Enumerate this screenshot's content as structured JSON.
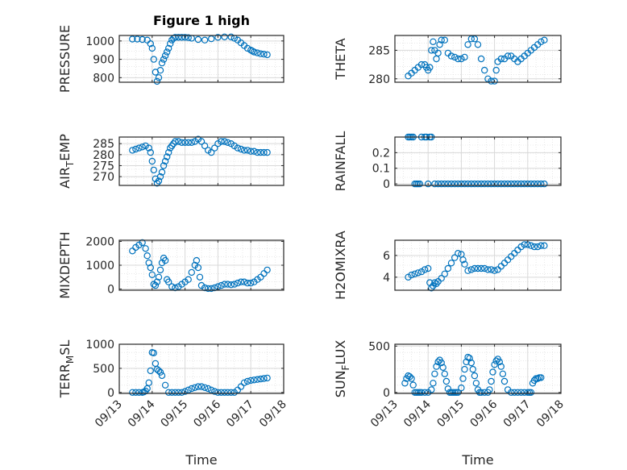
{
  "figure": {
    "title": "Figure 1 high",
    "marker_color": "#0072BD",
    "grid_color": "#d9d9d9",
    "axis_color": "#262626",
    "background": "#ffffff"
  },
  "chart_data": [
    {
      "id": "pressure",
      "type": "scatter",
      "marker": "circle-open",
      "title": "Figure 1 high",
      "ylabel": "PRESSURE",
      "xlabel": "",
      "ylim": [
        775,
        1030
      ],
      "yticks": [
        800,
        900,
        1000
      ],
      "grid": true,
      "x_date_ticks": [
        "09/13",
        "09/14",
        "09/15",
        "09/16",
        "09/17",
        "09/18"
      ],
      "x_tick_labels_shown": false,
      "x": [
        0.4,
        0.55,
        0.7,
        0.85,
        0.95,
        1.0,
        1.05,
        1.1,
        1.15,
        1.2,
        1.25,
        1.3,
        1.35,
        1.4,
        1.45,
        1.5,
        1.55,
        1.6,
        1.65,
        1.7,
        1.8,
        1.9,
        2.0,
        2.1,
        2.2,
        2.4,
        2.6,
        2.8,
        3.0,
        3.2,
        3.4,
        3.5,
        3.6,
        3.7,
        3.8,
        3.9,
        4.0,
        4.05,
        4.1,
        4.2,
        4.3,
        4.4,
        4.5
      ],
      "y": [
        1010,
        1010,
        1008,
        1005,
        985,
        960,
        900,
        830,
        780,
        800,
        840,
        880,
        900,
        920,
        940,
        960,
        985,
        1005,
        1015,
        1020,
        1020,
        1020,
        1020,
        1018,
        1015,
        1008,
        1005,
        1012,
        1020,
        1022,
        1022,
        1015,
        1005,
        990,
        975,
        960,
        950,
        945,
        940,
        935,
        930,
        928,
        925
      ]
    },
    {
      "id": "theta",
      "type": "scatter",
      "marker": "circle-open",
      "ylabel": "THETA",
      "xlabel": "",
      "ylim": [
        279.4,
        287.6
      ],
      "yticks": [
        280,
        285
      ],
      "grid": true,
      "x_date_ticks": [
        "09/13",
        "09/14",
        "09/15",
        "09/16",
        "09/17",
        "09/18"
      ],
      "x_tick_labels_shown": false,
      "x": [
        0.4,
        0.5,
        0.6,
        0.7,
        0.8,
        0.9,
        0.95,
        1.0,
        1.05,
        1.1,
        1.15,
        1.2,
        1.25,
        1.3,
        1.35,
        1.4,
        1.5,
        1.6,
        1.7,
        1.8,
        1.9,
        2.0,
        2.1,
        2.2,
        2.3,
        2.4,
        2.5,
        2.6,
        2.7,
        2.8,
        2.9,
        3.0,
        3.05,
        3.1,
        3.2,
        3.3,
        3.4,
        3.5,
        3.6,
        3.7,
        3.8,
        3.9,
        4.0,
        4.1,
        4.2,
        4.3,
        4.4,
        4.5
      ],
      "y": [
        280.5,
        281,
        281.5,
        282,
        282.5,
        282.5,
        282,
        281.5,
        282,
        285,
        286.5,
        285,
        283.5,
        284.5,
        286,
        286.8,
        286.8,
        284.5,
        284,
        283.8,
        283.5,
        283.5,
        283.8,
        286,
        287,
        287,
        286,
        283.5,
        281.5,
        280,
        279.6,
        279.6,
        281.5,
        283,
        283.5,
        283.5,
        284,
        284,
        283.5,
        283,
        283.5,
        284,
        284.5,
        285,
        285.5,
        286,
        286.5,
        286.8
      ]
    },
    {
      "id": "air_temp",
      "type": "scatter",
      "marker": "circle-open",
      "ylabel": "AIR_TEMP",
      "ylabel_rendered": [
        "AIR",
        "T",
        "EMP"
      ],
      "xlabel": "",
      "ylim": [
        266,
        288
      ],
      "yticks": [
        270,
        275,
        280,
        285
      ],
      "grid": true,
      "x_date_ticks": [
        "09/13",
        "09/14",
        "09/15",
        "09/16",
        "09/17",
        "09/18"
      ],
      "x_tick_labels_shown": false,
      "x": [
        0.4,
        0.5,
        0.6,
        0.7,
        0.8,
        0.9,
        0.95,
        1.0,
        1.05,
        1.1,
        1.15,
        1.2,
        1.25,
        1.3,
        1.35,
        1.4,
        1.45,
        1.5,
        1.55,
        1.6,
        1.65,
        1.7,
        1.8,
        1.9,
        2.0,
        2.1,
        2.2,
        2.3,
        2.4,
        2.5,
        2.6,
        2.7,
        2.8,
        2.9,
        3.0,
        3.1,
        3.2,
        3.3,
        3.4,
        3.5,
        3.6,
        3.7,
        3.8,
        3.9,
        4.0,
        4.1,
        4.2,
        4.3,
        4.4,
        4.5
      ],
      "y": [
        282,
        282.5,
        283,
        283.5,
        284,
        283,
        281,
        277,
        273,
        269,
        267,
        268,
        270,
        272,
        275,
        277,
        279,
        281,
        283,
        284,
        285,
        286,
        286,
        285.5,
        285.5,
        285.5,
        285.5,
        286,
        287,
        286,
        284,
        282,
        281,
        283,
        285,
        286,
        286,
        285.5,
        285,
        284,
        283,
        282.5,
        282,
        282,
        281.5,
        281.5,
        281,
        281,
        281,
        281
      ]
    },
    {
      "id": "rainfall",
      "type": "scatter",
      "marker": "circle-open",
      "ylabel": "RAINFALL",
      "xlabel": "",
      "ylim": [
        -0.01,
        0.3
      ],
      "yticks": [
        0,
        0.1,
        0.2
      ],
      "ytick_labels": [
        "0",
        "0.1",
        "0.2"
      ],
      "grid": true,
      "x_date_ticks": [
        "09/13",
        "09/14",
        "09/15",
        "09/16",
        "09/17",
        "09/18"
      ],
      "x_tick_labels_shown": false,
      "x": [
        0.4,
        0.45,
        0.5,
        0.55,
        0.6,
        0.65,
        0.7,
        0.75,
        0.8,
        0.9,
        0.95,
        1.0,
        1.05,
        1.1,
        1.2,
        1.3,
        1.4,
        1.5,
        1.6,
        1.7,
        1.8,
        1.9,
        2.0,
        2.1,
        2.2,
        2.3,
        2.4,
        2.5,
        2.6,
        2.7,
        2.8,
        2.9,
        3.0,
        3.1,
        3.2,
        3.3,
        3.4,
        3.5,
        3.6,
        3.7,
        3.8,
        3.9,
        4.0,
        4.1,
        4.2,
        4.3,
        4.4,
        4.5
      ],
      "y": [
        0.3,
        0.3,
        0.3,
        0.3,
        0,
        0,
        0,
        0,
        0.3,
        0.3,
        0.3,
        0,
        0.3,
        0.3,
        0,
        0,
        0,
        0,
        0,
        0,
        0,
        0,
        0,
        0,
        0,
        0,
        0,
        0,
        0,
        0,
        0,
        0,
        0,
        0,
        0,
        0,
        0,
        0,
        0,
        0,
        0,
        0,
        0,
        0,
        0,
        0,
        0,
        0
      ]
    },
    {
      "id": "mixdepth",
      "type": "scatter",
      "marker": "circle-open",
      "ylabel": "MIXDEPTH",
      "xlabel": "",
      "ylim": [
        -50,
        2050
      ],
      "yticks": [
        0,
        1000,
        2000
      ],
      "grid": true,
      "x_date_ticks": [
        "09/13",
        "09/14",
        "09/15",
        "09/16",
        "09/17",
        "09/18"
      ],
      "x_tick_labels_shown": false,
      "x": [
        0.4,
        0.5,
        0.6,
        0.7,
        0.8,
        0.85,
        0.9,
        0.95,
        1.0,
        1.05,
        1.1,
        1.15,
        1.2,
        1.25,
        1.3,
        1.35,
        1.4,
        1.45,
        1.5,
        1.6,
        1.7,
        1.8,
        1.9,
        2.0,
        2.1,
        2.2,
        2.3,
        2.35,
        2.4,
        2.45,
        2.5,
        2.6,
        2.7,
        2.8,
        2.9,
        3.0,
        3.1,
        3.2,
        3.3,
        3.4,
        3.5,
        3.6,
        3.7,
        3.8,
        3.9,
        4.0,
        4.1,
        4.2,
        4.3,
        4.4,
        4.5
      ],
      "y": [
        1600,
        1750,
        1850,
        1950,
        1700,
        1400,
        1100,
        900,
        600,
        200,
        150,
        300,
        500,
        800,
        1100,
        1300,
        1200,
        400,
        300,
        100,
        50,
        100,
        200,
        300,
        400,
        700,
        1000,
        1200,
        900,
        500,
        150,
        50,
        20,
        20,
        50,
        100,
        150,
        200,
        200,
        180,
        200,
        250,
        300,
        300,
        250,
        250,
        300,
        400,
        500,
        650,
        800
      ]
    },
    {
      "id": "h2omixra",
      "type": "scatter",
      "marker": "circle-open",
      "ylabel": "H2OMIXRA",
      "xlabel": "",
      "ylim": [
        2.8,
        7.4
      ],
      "yticks": [
        4,
        6
      ],
      "grid": true,
      "x_date_ticks": [
        "09/13",
        "09/14",
        "09/15",
        "09/16",
        "09/17",
        "09/18"
      ],
      "x_tick_labels_shown": false,
      "x": [
        0.4,
        0.5,
        0.6,
        0.7,
        0.8,
        0.9,
        1.0,
        1.05,
        1.1,
        1.15,
        1.2,
        1.25,
        1.3,
        1.4,
        1.5,
        1.6,
        1.7,
        1.8,
        1.9,
        2.0,
        2.05,
        2.1,
        2.2,
        2.3,
        2.4,
        2.5,
        2.6,
        2.7,
        2.8,
        2.9,
        3.0,
        3.1,
        3.2,
        3.3,
        3.4,
        3.5,
        3.6,
        3.7,
        3.8,
        3.9,
        4.0,
        4.1,
        4.2,
        4.3,
        4.4,
        4.5
      ],
      "y": [
        4,
        4.2,
        4.3,
        4.4,
        4.5,
        4.7,
        4.8,
        3.5,
        3,
        3.2,
        3.5,
        3.4,
        3.6,
        3.9,
        4.3,
        4.8,
        5.3,
        5.8,
        6.2,
        6.1,
        5.6,
        5.2,
        4.6,
        4.7,
        4.8,
        4.8,
        4.8,
        4.8,
        4.7,
        4.7,
        4.6,
        4.7,
        5,
        5.3,
        5.6,
        5.9,
        6.2,
        6.5,
        6.8,
        7,
        7,
        6.9,
        6.8,
        6.8,
        6.9,
        6.9
      ]
    },
    {
      "id": "terr_msl",
      "type": "scatter",
      "marker": "circle-open",
      "ylabel": "TERR_MSL",
      "ylabel_rendered": [
        "TERR",
        "M",
        "SL"
      ],
      "xlabel": "Time",
      "ylim": [
        -20,
        1000
      ],
      "yticks": [
        0,
        500,
        1000
      ],
      "grid": true,
      "x_date_ticks": [
        "09/13",
        "09/14",
        "09/15",
        "09/16",
        "09/17",
        "09/18"
      ],
      "x_tick_labels_shown": true,
      "x": [
        0.4,
        0.5,
        0.6,
        0.7,
        0.75,
        0.8,
        0.85,
        0.9,
        0.95,
        1.0,
        1.05,
        1.1,
        1.15,
        1.2,
        1.25,
        1.3,
        1.4,
        1.5,
        1.6,
        1.7,
        1.8,
        1.9,
        2.0,
        2.1,
        2.2,
        2.3,
        2.4,
        2.5,
        2.6,
        2.7,
        2.8,
        2.9,
        3.0,
        3.1,
        3.2,
        3.3,
        3.4,
        3.5,
        3.6,
        3.7,
        3.8,
        3.9,
        4.0,
        4.1,
        4.2,
        4.3,
        4.4,
        4.5
      ],
      "y": [
        0,
        0,
        0,
        0,
        10,
        30,
        80,
        200,
        450,
        830,
        820,
        600,
        480,
        450,
        420,
        350,
        150,
        0,
        0,
        0,
        0,
        0,
        20,
        50,
        80,
        100,
        120,
        120,
        100,
        80,
        50,
        20,
        0,
        0,
        0,
        0,
        0,
        0,
        50,
        120,
        200,
        230,
        250,
        260,
        270,
        280,
        290,
        300
      ]
    },
    {
      "id": "sun_flux",
      "type": "scatter",
      "marker": "circle-open",
      "ylabel": "SUN_FLUX",
      "ylabel_rendered": [
        "SUN",
        "F",
        "LUX"
      ],
      "xlabel": "Time",
      "ylim": [
        -10,
        520
      ],
      "yticks": [
        0,
        500
      ],
      "grid": true,
      "x_date_ticks": [
        "09/13",
        "09/14",
        "09/15",
        "09/16",
        "09/17",
        "09/18"
      ],
      "x_tick_labels_shown": true,
      "x": [
        0.3,
        0.35,
        0.4,
        0.45,
        0.5,
        0.55,
        0.6,
        0.65,
        0.7,
        0.75,
        0.8,
        0.9,
        1.0,
        1.1,
        1.15,
        1.2,
        1.25,
        1.3,
        1.35,
        1.4,
        1.45,
        1.5,
        1.55,
        1.6,
        1.65,
        1.7,
        1.75,
        1.8,
        1.85,
        1.9,
        2.0,
        2.05,
        2.1,
        2.15,
        2.2,
        2.25,
        2.3,
        2.35,
        2.4,
        2.45,
        2.5,
        2.55,
        2.6,
        2.7,
        2.8,
        2.85,
        2.9,
        2.95,
        3.0,
        3.05,
        3.1,
        3.15,
        3.2,
        3.25,
        3.3,
        3.4,
        3.5,
        3.6,
        3.7,
        3.8,
        3.9,
        4.0,
        4.05,
        4.1,
        4.15,
        4.2,
        4.25,
        4.3,
        4.35,
        4.4
      ],
      "y": [
        100,
        150,
        180,
        170,
        150,
        80,
        0,
        0,
        0,
        0,
        0,
        0,
        0,
        30,
        100,
        200,
        280,
        330,
        350,
        320,
        270,
        200,
        120,
        40,
        0,
        0,
        0,
        0,
        0,
        0,
        50,
        150,
        250,
        330,
        380,
        370,
        320,
        250,
        180,
        100,
        30,
        0,
        0,
        0,
        0,
        30,
        120,
        220,
        300,
        340,
        360,
        330,
        280,
        200,
        120,
        30,
        0,
        0,
        0,
        0,
        0,
        0,
        0,
        0,
        100,
        130,
        150,
        150,
        160,
        160
      ]
    }
  ]
}
